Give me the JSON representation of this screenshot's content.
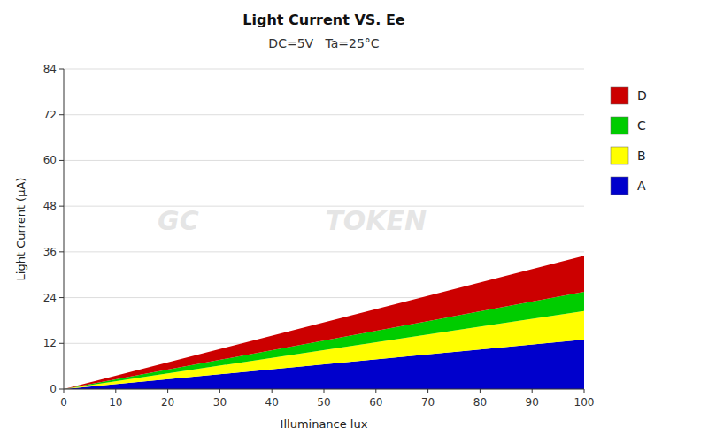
{
  "chart_data": {
    "type": "area",
    "stacked": true,
    "title": "Light Current VS. Ee",
    "subtitle": "DC=5V   Ta=25°C",
    "x_label": "Illuminance  lux",
    "y_label": "Light Current (μA)",
    "x": [
      0,
      100
    ],
    "series": [
      {
        "name": "A",
        "color": "#0000cc",
        "values": [
          0,
          13.0
        ]
      },
      {
        "name": "B",
        "color": "#ffff00",
        "values": [
          0,
          7.5
        ]
      },
      {
        "name": "C",
        "color": "#00cc00",
        "values": [
          0,
          5.0
        ]
      },
      {
        "name": "D",
        "color": "#cc0000",
        "values": [
          0,
          9.5
        ]
      }
    ],
    "xlim": [
      0,
      100
    ],
    "ylim": [
      0,
      84
    ],
    "xticks": [
      0,
      10,
      20,
      30,
      40,
      50,
      60,
      70,
      80,
      90,
      100
    ],
    "yticks": [
      0,
      12,
      24,
      36,
      48,
      60,
      72,
      84
    ],
    "grid": true,
    "legend": "right",
    "annotations": [
      "GC",
      "TOKEN"
    ]
  }
}
